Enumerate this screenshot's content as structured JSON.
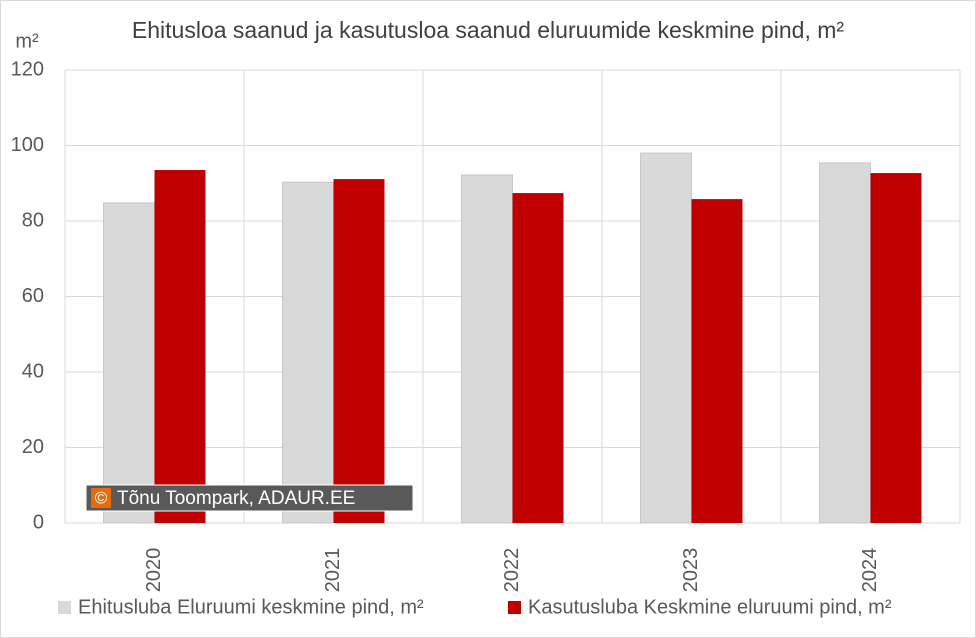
{
  "chart_data": {
    "type": "bar",
    "title": "Ehitusloa saanud ja kasutusloa saanud eluruumide keskmine pind, m²",
    "y_label": "m²",
    "categories": [
      "2020",
      "2021",
      "2022",
      "2023",
      "2024"
    ],
    "series": [
      {
        "name": "Ehitusluba Eluruumi keskmine pind, m²",
        "color": "#d9d9d9",
        "values": [
          84.8,
          90.3,
          92.2,
          98.0,
          95.4
        ]
      },
      {
        "name": "Kasutusluba Keskmine eluruumi pind, m²",
        "color": "#c00000",
        "values": [
          93.5,
          91.1,
          87.4,
          85.8,
          92.7
        ]
      }
    ],
    "ylim": [
      0,
      120
    ],
    "yticks": [
      0,
      20,
      40,
      60,
      80,
      100,
      120
    ],
    "grid": true,
    "annotation": {
      "icon": "©",
      "text": "Tõnu Toompark, ADAUR.EE"
    }
  }
}
